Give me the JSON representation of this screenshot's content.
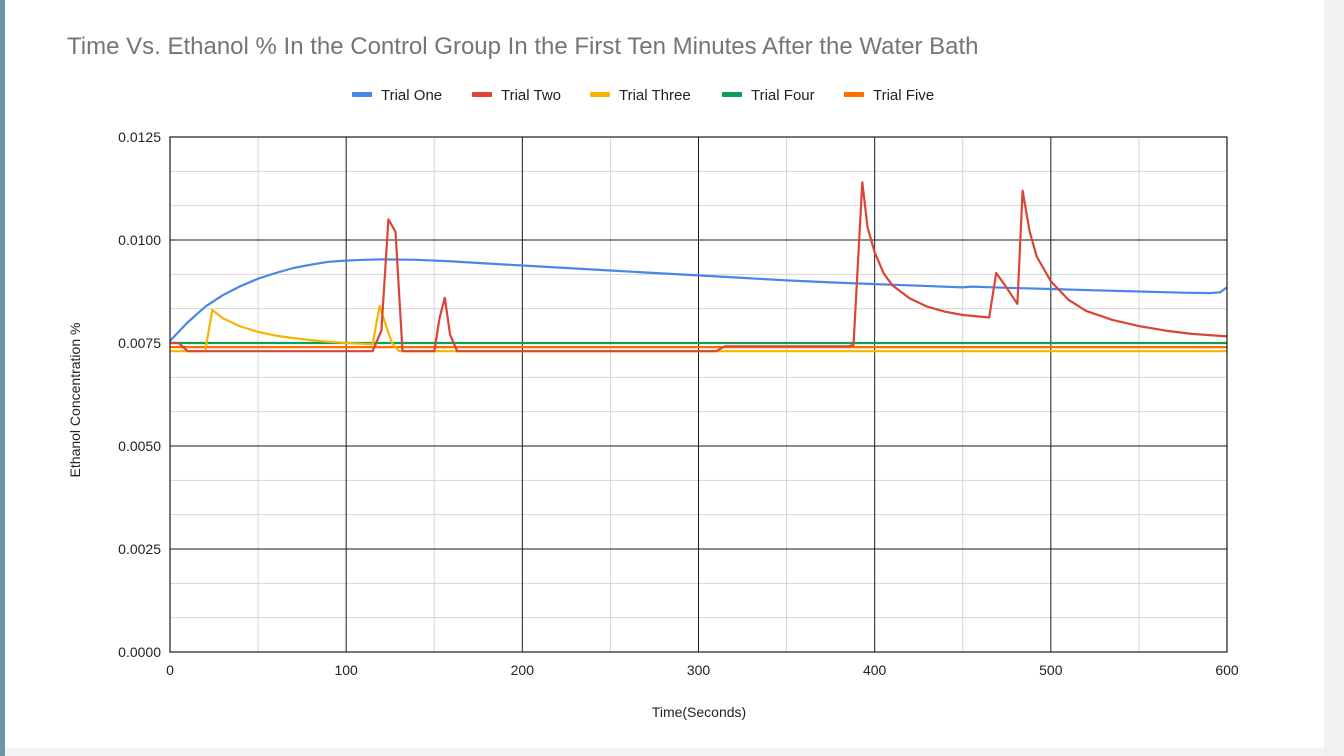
{
  "chart_data": {
    "type": "line",
    "title": "Time Vs. Ethanol % In the Control Group In the First Ten Minutes After the Water Bath",
    "xlabel": "Time(Seconds)",
    "ylabel": "Ethanol Concentration %",
    "xlim": [
      0,
      600
    ],
    "ylim": [
      0,
      0.0125
    ],
    "x_ticks": [
      "0",
      "100",
      "200",
      "300",
      "400",
      "500",
      "600"
    ],
    "y_ticks": [
      "0.0000",
      "0.0025",
      "0.0050",
      "0.0075",
      "0.0100",
      "0.0125"
    ],
    "grid": true,
    "legend_position": "top",
    "series": [
      {
        "name": "Trial One",
        "color": "#4a86e8",
        "points": [
          [
            0,
            0.00755
          ],
          [
            10,
            0.008
          ],
          [
            20,
            0.00838
          ],
          [
            30,
            0.00866
          ],
          [
            40,
            0.00888
          ],
          [
            50,
            0.00906
          ],
          [
            60,
            0.0092
          ],
          [
            70,
            0.00932
          ],
          [
            80,
            0.0094
          ],
          [
            90,
            0.00947
          ],
          [
            100,
            0.0095
          ],
          [
            110,
            0.00952
          ],
          [
            120,
            0.00953
          ],
          [
            140,
            0.00952
          ],
          [
            160,
            0.00948
          ],
          [
            180,
            0.00943
          ],
          [
            200,
            0.00938
          ],
          [
            225,
            0.00932
          ],
          [
            250,
            0.00926
          ],
          [
            275,
            0.0092
          ],
          [
            300,
            0.00914
          ],
          [
            325,
            0.00908
          ],
          [
            350,
            0.00902
          ],
          [
            375,
            0.00897
          ],
          [
            400,
            0.00893
          ],
          [
            425,
            0.00889
          ],
          [
            450,
            0.00885
          ],
          [
            455,
            0.00887
          ],
          [
            475,
            0.00884
          ],
          [
            500,
            0.00881
          ],
          [
            525,
            0.00878
          ],
          [
            550,
            0.00875
          ],
          [
            575,
            0.00872
          ],
          [
            590,
            0.00871
          ],
          [
            596,
            0.00873
          ],
          [
            600,
            0.00885
          ]
        ]
      },
      {
        "name": "Trial Two",
        "color": "#db4437",
        "points": [
          [
            0,
            0.0075
          ],
          [
            5,
            0.0075
          ],
          [
            10,
            0.0073
          ],
          [
            100,
            0.0073
          ],
          [
            115,
            0.0073
          ],
          [
            120,
            0.0078
          ],
          [
            124,
            0.0105
          ],
          [
            128,
            0.0102
          ],
          [
            132,
            0.0073
          ],
          [
            150,
            0.0073
          ],
          [
            153,
            0.0081
          ],
          [
            156,
            0.0086
          ],
          [
            159,
            0.0077
          ],
          [
            163,
            0.0073
          ],
          [
            310,
            0.0073
          ],
          [
            315,
            0.00742
          ],
          [
            385,
            0.00742
          ],
          [
            388,
            0.00745
          ],
          [
            393,
            0.0114
          ],
          [
            396,
            0.0103
          ],
          [
            400,
            0.0097
          ],
          [
            405,
            0.0092
          ],
          [
            410,
            0.0089
          ],
          [
            420,
            0.00858
          ],
          [
            430,
            0.00838
          ],
          [
            440,
            0.00826
          ],
          [
            450,
            0.00818
          ],
          [
            465,
            0.00812
          ],
          [
            469,
            0.0092
          ],
          [
            474,
            0.0089
          ],
          [
            481,
            0.00845
          ],
          [
            484,
            0.0112
          ],
          [
            488,
            0.0102
          ],
          [
            492,
            0.0096
          ],
          [
            500,
            0.009
          ],
          [
            510,
            0.00855
          ],
          [
            520,
            0.00828
          ],
          [
            535,
            0.00806
          ],
          [
            550,
            0.00791
          ],
          [
            565,
            0.0078
          ],
          [
            580,
            0.00772
          ],
          [
            600,
            0.00766
          ]
        ]
      },
      {
        "name": "Trial Three",
        "color": "#f4b400",
        "points": [
          [
            0,
            0.0073
          ],
          [
            20,
            0.0073
          ],
          [
            24,
            0.0083
          ],
          [
            30,
            0.0081
          ],
          [
            40,
            0.0079
          ],
          [
            50,
            0.00777
          ],
          [
            60,
            0.00768
          ],
          [
            70,
            0.00762
          ],
          [
            80,
            0.00757
          ],
          [
            90,
            0.00753
          ],
          [
            100,
            0.0075
          ],
          [
            110,
            0.00748
          ],
          [
            115,
            0.00747
          ],
          [
            119,
            0.0084
          ],
          [
            122,
            0.008
          ],
          [
            126,
            0.0075
          ],
          [
            130,
            0.0073
          ],
          [
            600,
            0.0073
          ]
        ]
      },
      {
        "name": "Trial Four",
        "color": "#0f9d58",
        "points": [
          [
            0,
            0.0075
          ],
          [
            600,
            0.0075
          ]
        ]
      },
      {
        "name": "Trial Five",
        "color": "#ff6d00",
        "points": [
          [
            0,
            0.0074
          ],
          [
            600,
            0.0074
          ]
        ]
      }
    ]
  }
}
